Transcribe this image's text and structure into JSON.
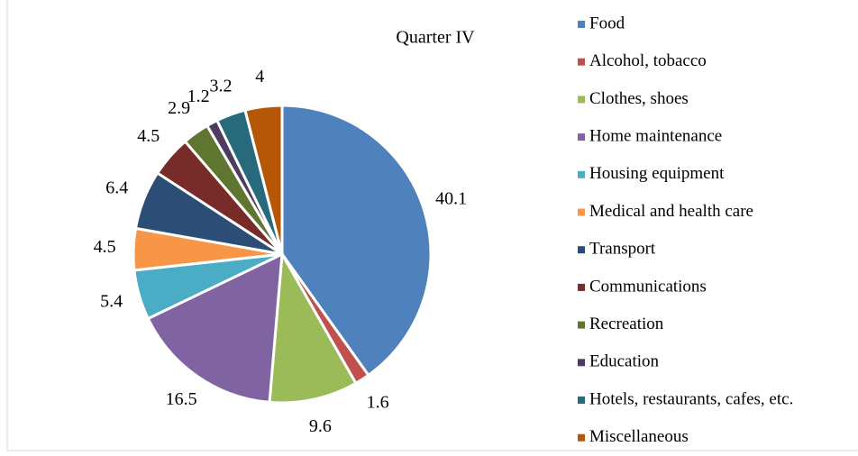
{
  "chart_data": {
    "type": "pie",
    "title": "Quarter IV",
    "categories": [
      "Food",
      "Alcohol, tobacco",
      "Clothes, shoes",
      "Home maintenance",
      "Housing equipment",
      "Medical and health care",
      "Transport",
      "Communications",
      "Recreation",
      "Education",
      "Hotels, restaurants, cafes, etc.",
      "Miscellaneous"
    ],
    "values": [
      40.1,
      1.6,
      9.6,
      16.5,
      5.4,
      4.5,
      6.4,
      4.5,
      2.9,
      1.2,
      3.2,
      4
    ],
    "colors": [
      "#4f81bd",
      "#c0504d",
      "#9bbb59",
      "#8064a2",
      "#4bacc6",
      "#f79646",
      "#2c4d75",
      "#772c2a",
      "#5f7530",
      "#4d3b62",
      "#276a7c",
      "#b65708"
    ],
    "legend": "right"
  }
}
